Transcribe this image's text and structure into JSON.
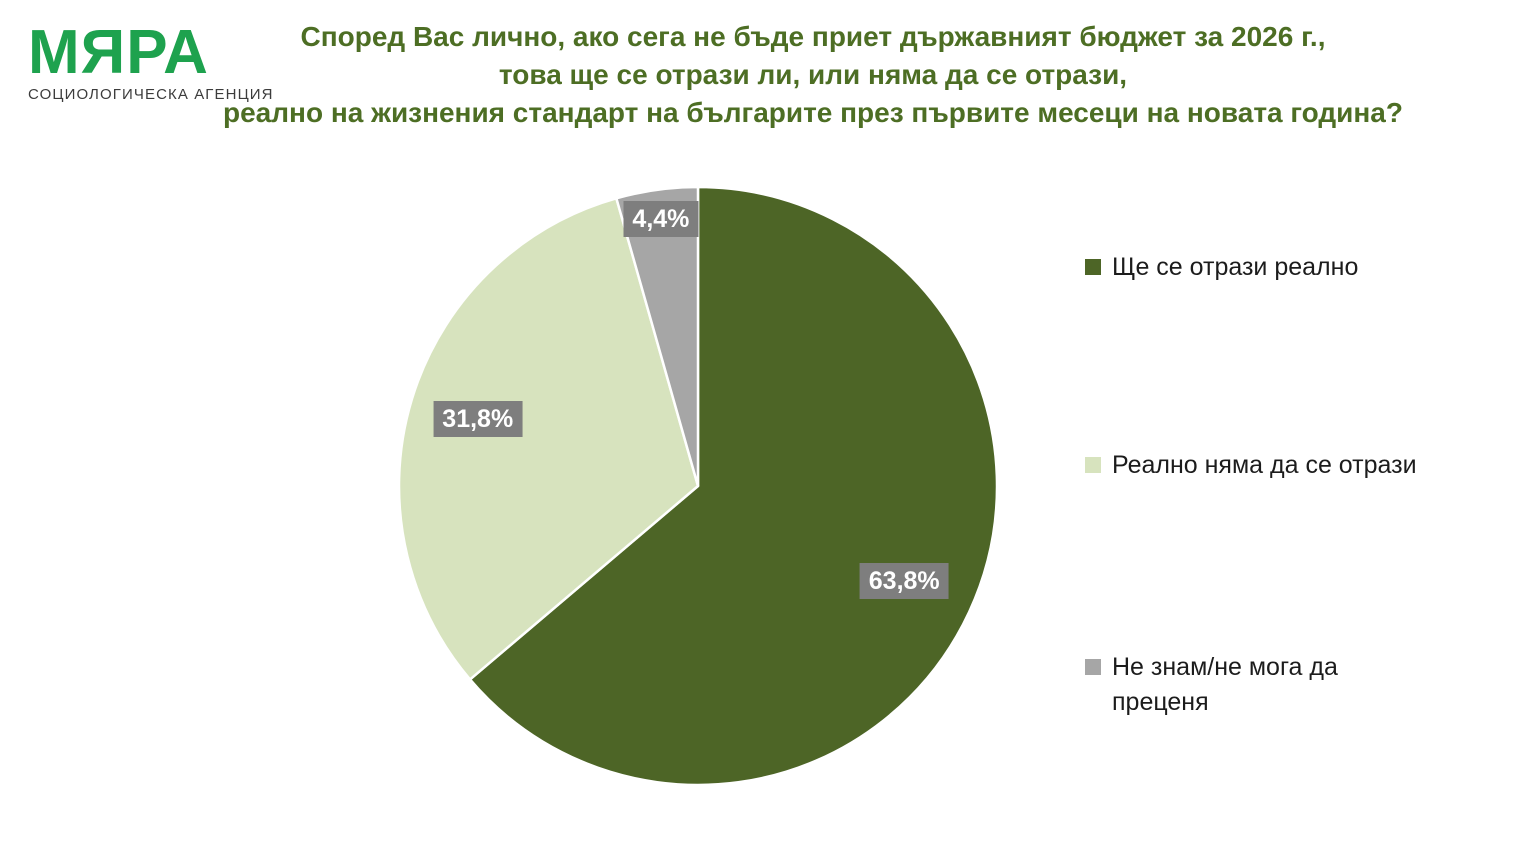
{
  "logo": {
    "name": "МЯРА",
    "subtitle": "СОЦИОЛОГИЧЕСКА АГЕНЦИЯ",
    "brand_color": "#1ea24e"
  },
  "title": {
    "lines": [
      "Според Вас лично, ако сега не бъде приет държавният бюджет за 2026 г.,",
      "това ще се отрази ли, или няма да се отрази,",
      "реално на жизнения стандарт на българите през първите месеци на новата година?"
    ],
    "color": "#4d6e24"
  },
  "chart_data": {
    "type": "pie",
    "categories": [
      "Ще се отрази реално",
      "Реално няма да се отрази",
      "Не знам/не мога да преценя"
    ],
    "values": [
      63.8,
      31.8,
      4.4
    ],
    "labels": [
      "63,8%",
      "31,8%",
      "4,4%"
    ],
    "colors": [
      "#4d6526",
      "#d7e3be",
      "#a6a6a6"
    ],
    "slice_border_color": "#ffffff",
    "label_bg": "#7e7e7e",
    "label_color": "#ffffff",
    "label_radius_frac": [
      0.76,
      0.77,
      0.9
    ],
    "start_angle_deg": 0,
    "direction": "clockwise",
    "legend_position": "right",
    "title": "Според Вас лично, ако сега не бъде приет държавният бюджет за 2026 г., това ще се отрази ли, или няма да се отрази, реално на жизнения стандарт на българите през първите месеци на новата година?"
  },
  "legend": {
    "items": [
      {
        "label": "Ще се отрази реално",
        "color": "#4d6526"
      },
      {
        "label": "Реално няма да се отрази",
        "color": "#d7e3be"
      },
      {
        "label": "Не знам/не мога да преценя",
        "color": "#a6a6a6"
      }
    ]
  }
}
